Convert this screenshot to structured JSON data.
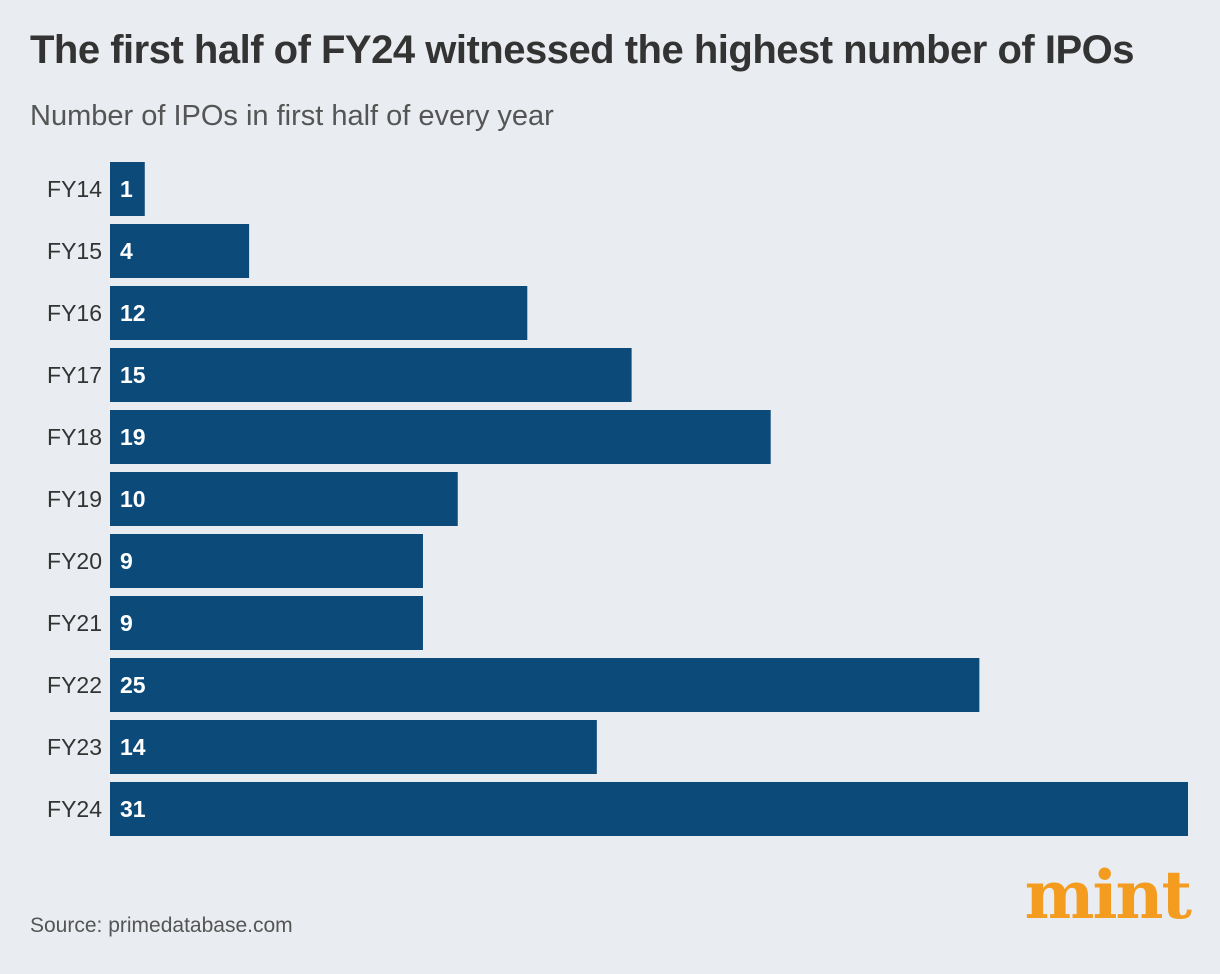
{
  "header": {
    "title": "The first half of FY24 witnessed the highest number of IPOs",
    "subtitle": "Number of IPOs in first half of every year"
  },
  "footer": {
    "source": "Source: primedatabase.com",
    "logo": "mint"
  },
  "colors": {
    "bar": "#0c4a79",
    "logo": "#f39c1f",
    "background": "#e9ecf0"
  },
  "chart_data": {
    "type": "bar",
    "orientation": "horizontal",
    "categories": [
      "FY14",
      "FY15",
      "FY16",
      "FY17",
      "FY18",
      "FY19",
      "FY20",
      "FY21",
      "FY22",
      "FY23",
      "FY24"
    ],
    "values": [
      1,
      4,
      12,
      15,
      19,
      10,
      9,
      9,
      25,
      14,
      31
    ],
    "title": "The first half of FY24 witnessed the highest number of IPOs",
    "subtitle": "Number of IPOs in first half of every year",
    "xlim": [
      0,
      31
    ],
    "grid": false,
    "data_labels": true
  }
}
